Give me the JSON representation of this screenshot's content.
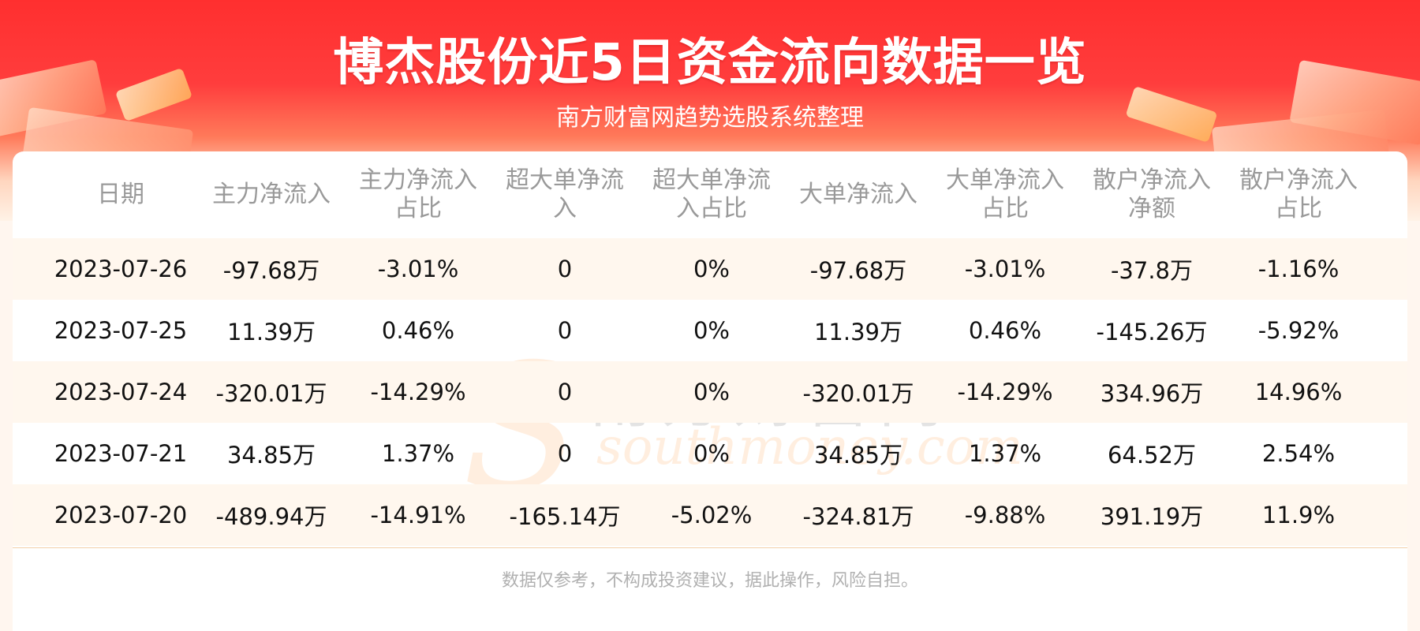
{
  "header": {
    "title": "博杰股份近5日资金流向数据一览",
    "subtitle": "南方财富网趋势选股系统整理"
  },
  "watermark": {
    "cn": "南方财富网",
    "en": "southmoney.com",
    "mark": "S"
  },
  "table": {
    "columns": [
      "日期",
      "主力净流入",
      "主力净流入\n占比",
      "超大单净流\n入",
      "超大单净流\n入占比",
      "大单净流入",
      "大单净流入\n占比",
      "散户净流入\n净额",
      "散户净流入\n占比"
    ],
    "rows": [
      [
        "2023-07-26",
        "-97.68万",
        "-3.01%",
        "0",
        "0%",
        "-97.68万",
        "-3.01%",
        "-37.8万",
        "-1.16%"
      ],
      [
        "2023-07-25",
        "11.39万",
        "0.46%",
        "0",
        "0%",
        "11.39万",
        "0.46%",
        "-145.26万",
        "-5.92%"
      ],
      [
        "2023-07-24",
        "-320.01万",
        "-14.29%",
        "0",
        "0%",
        "-320.01万",
        "-14.29%",
        "334.96万",
        "14.96%"
      ],
      [
        "2023-07-21",
        "34.85万",
        "1.37%",
        "0",
        "0%",
        "34.85万",
        "1.37%",
        "64.52万",
        "2.54%"
      ],
      [
        "2023-07-20",
        "-489.94万",
        "-14.91%",
        "-165.14万",
        "-5.02%",
        "-324.81万",
        "-9.88%",
        "391.19万",
        "11.9%"
      ]
    ]
  },
  "footer": {
    "disclaimer": "数据仅参考，不构成投资建议，据此操作，风险自担。"
  },
  "colors": {
    "banner_red": "#ff2f2f",
    "header_text": "#999999",
    "row_stripe": "#fff7ee",
    "cell_text": "#111111",
    "footer_text": "#b0b0b0"
  }
}
